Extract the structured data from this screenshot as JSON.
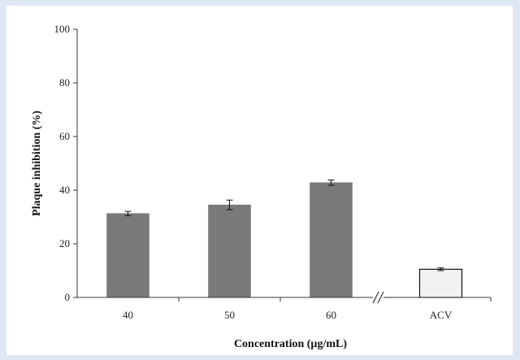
{
  "chart_data": {
    "type": "bar",
    "categories": [
      "40",
      "50",
      "60",
      "ACV"
    ],
    "series": [
      {
        "values": [
          31.3,
          34.5,
          42.8,
          10.5
        ],
        "errors": [
          0.8,
          1.8,
          1.0,
          0.5
        ]
      }
    ],
    "xlabel": "Concentration (µg/mL)",
    "ylabel": "Plaque inhibition (%)",
    "ylim": [
      0,
      100
    ],
    "yticks": [
      0,
      20,
      40,
      60,
      80,
      100
    ],
    "grid": false,
    "axis_break_before": "ACV",
    "colors": {
      "bar": "#7a7a7a",
      "control_bar": "#f2f2f2",
      "axis": "#333333"
    }
  }
}
